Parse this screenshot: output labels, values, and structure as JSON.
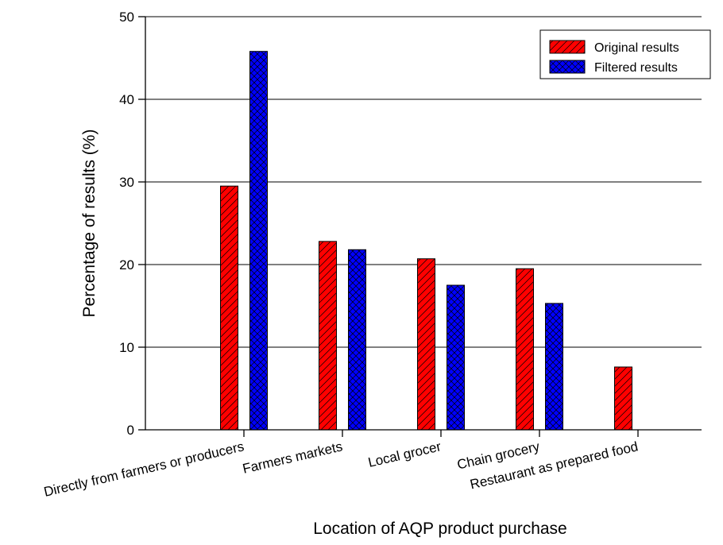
{
  "chart_data": {
    "type": "bar",
    "categories": [
      "Directly from farmers or producers",
      "Farmers markets",
      "Local grocer",
      "Chain grocery",
      "Restaurant as prepared food"
    ],
    "series": [
      {
        "name": "Original results",
        "values": [
          29.5,
          22.8,
          20.7,
          19.5,
          7.6
        ],
        "color": "#ff0000",
        "pattern": "diagonal-hatch"
      },
      {
        "name": "Filtered results",
        "values": [
          45.8,
          21.8,
          17.5,
          15.3,
          null
        ],
        "color": "#0000ff",
        "pattern": "cross-hatch"
      }
    ],
    "title": "",
    "xlabel": "Location of AQP product purchase",
    "ylabel": "Percentage of results (%)",
    "ylim": [
      0,
      50
    ],
    "yticks": [
      "0",
      "10",
      "20",
      "30",
      "40",
      "50"
    ],
    "grid": "horizontal",
    "legend_position": "top-right"
  }
}
